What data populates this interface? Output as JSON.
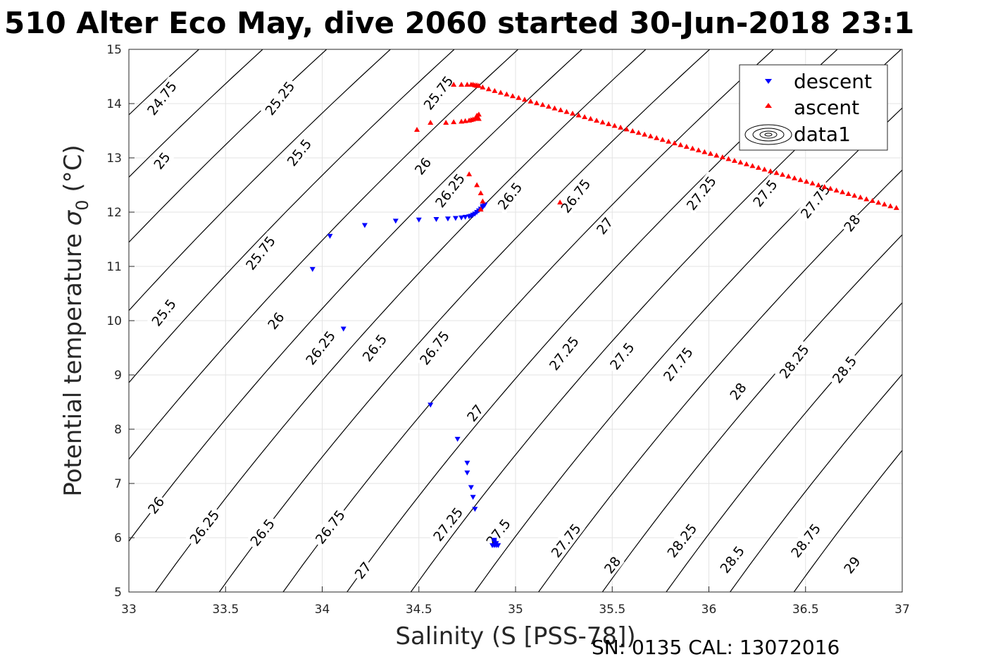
{
  "title": "510 Alter Eco May, dive 2060 started 30-Jun-2018 23:1",
  "footer": "SN: 0135  CAL: 13072016",
  "chart_data": {
    "type": "scatter",
    "xlabel": "Salinity (S [PSS-78])",
    "ylabel_main": "Potential temperature ",
    "ylabel_sigma": "σ",
    "ylabel_sub": "0",
    "ylabel_unit": " (°C)",
    "xlim": [
      33,
      37
    ],
    "ylim": [
      5,
      15
    ],
    "xticks": [
      33,
      33.5,
      34,
      34.5,
      35,
      35.5,
      36,
      36.5,
      37
    ],
    "xtick_labels": [
      "33",
      "33.5",
      "34",
      "34.5",
      "35",
      "35.5",
      "36",
      "36.5",
      "37"
    ],
    "yticks": [
      5,
      6,
      7,
      8,
      9,
      10,
      11,
      12,
      13,
      14,
      15
    ],
    "ytick_labels": [
      "5",
      "6",
      "7",
      "8",
      "9",
      "10",
      "11",
      "12",
      "13",
      "14",
      "15"
    ],
    "grid": true,
    "legend_position": "top-right",
    "contour_levels": [
      24.75,
      25,
      25.25,
      25.5,
      25.75,
      26,
      26.25,
      26.5,
      26.75,
      27,
      27.25,
      27.5,
      27.75,
      28,
      28.25,
      28.5,
      28.75,
      29
    ],
    "contour_labels": [
      {
        "text": "24.75",
        "s": 33.17,
        "t": 14.1
      },
      {
        "text": "25",
        "s": 33.17,
        "t": 12.95
      },
      {
        "text": "25.25",
        "s": 33.78,
        "t": 14.1
      },
      {
        "text": "25.5",
        "s": 33.88,
        "t": 13.1
      },
      {
        "text": "25.75",
        "s": 34.6,
        "t": 14.2
      },
      {
        "text": "26",
        "s": 34.52,
        "t": 12.85
      },
      {
        "text": "26.25",
        "s": 34.66,
        "t": 12.4
      },
      {
        "text": "26.5",
        "s": 34.97,
        "t": 12.3
      },
      {
        "text": "26.75",
        "s": 35.31,
        "t": 12.3
      },
      {
        "text": "27.25",
        "s": 35.96,
        "t": 12.35
      },
      {
        "text": "27.5",
        "s": 36.29,
        "t": 12.35
      },
      {
        "text": "27.75",
        "s": 36.55,
        "t": 12.2
      },
      {
        "text": "27",
        "s": 35.46,
        "t": 11.75
      },
      {
        "text": "28",
        "s": 36.74,
        "t": 11.8
      },
      {
        "text": "25.75",
        "s": 33.68,
        "t": 11.25
      },
      {
        "text": "25.5",
        "s": 33.18,
        "t": 10.15
      },
      {
        "text": "26",
        "s": 33.76,
        "t": 10.0
      },
      {
        "text": "26.25",
        "s": 33.99,
        "t": 9.5
      },
      {
        "text": "26.5",
        "s": 34.27,
        "t": 9.5
      },
      {
        "text": "26.75",
        "s": 34.58,
        "t": 9.5
      },
      {
        "text": "27",
        "s": 34.79,
        "t": 8.3
      },
      {
        "text": "27.25",
        "s": 35.25,
        "t": 9.4
      },
      {
        "text": "27.5",
        "s": 35.55,
        "t": 9.35
      },
      {
        "text": "27.75",
        "s": 35.84,
        "t": 9.2
      },
      {
        "text": "28",
        "s": 36.15,
        "t": 8.7
      },
      {
        "text": "28.25",
        "s": 36.44,
        "t": 9.25
      },
      {
        "text": "28.5",
        "s": 36.7,
        "t": 9.1
      },
      {
        "text": "26",
        "s": 33.14,
        "t": 6.6
      },
      {
        "text": "26.25",
        "s": 33.39,
        "t": 6.2
      },
      {
        "text": "26.5",
        "s": 33.69,
        "t": 6.1
      },
      {
        "text": "26.75",
        "s": 34.04,
        "t": 6.2
      },
      {
        "text": "27",
        "s": 34.21,
        "t": 5.4
      },
      {
        "text": "27.25",
        "s": 34.65,
        "t": 6.25
      },
      {
        "text": "27.5",
        "s": 34.91,
        "t": 6.1
      },
      {
        "text": "27.75",
        "s": 35.26,
        "t": 5.95
      },
      {
        "text": "28",
        "s": 35.5,
        "t": 5.5
      },
      {
        "text": "28.25",
        "s": 35.86,
        "t": 5.95
      },
      {
        "text": "28.5",
        "s": 36.12,
        "t": 5.6
      },
      {
        "text": "28.75",
        "s": 36.5,
        "t": 5.95
      },
      {
        "text": "29",
        "s": 36.74,
        "t": 5.5
      }
    ],
    "series": [
      {
        "name": "descent",
        "color": "#0000ff",
        "marker": "triangle-down",
        "x": [
          33.95,
          34.04,
          34.11,
          34.22,
          34.38,
          34.5,
          34.59,
          34.65,
          34.69,
          34.72,
          34.74,
          34.76,
          34.77,
          34.78,
          34.79,
          34.8,
          34.81,
          34.82,
          34.83,
          34.83,
          34.84,
          34.84,
          34.56,
          34.7,
          34.75,
          34.75,
          34.77,
          34.78,
          34.79,
          34.89,
          34.88,
          34.89,
          34.9,
          34.91,
          34.9,
          34.89
        ],
        "y": [
          10.95,
          11.56,
          9.85,
          11.76,
          11.84,
          11.86,
          11.87,
          11.88,
          11.89,
          11.9,
          11.91,
          11.92,
          11.93,
          11.95,
          11.97,
          12.0,
          12.03,
          12.06,
          12.09,
          12.11,
          12.13,
          12.14,
          8.45,
          7.82,
          7.38,
          7.2,
          6.93,
          6.75,
          6.53,
          5.96,
          5.86,
          5.86,
          5.86,
          5.86,
          5.9,
          5.93
        ]
      },
      {
        "name": "ascent",
        "color": "#ff0000",
        "marker": "triangle-up",
        "x": [
          34.49,
          34.56,
          34.64,
          34.68,
          34.72,
          34.74,
          34.76,
          34.77,
          34.78,
          34.79,
          34.8,
          34.8,
          34.8,
          34.81,
          34.81,
          34.68,
          34.72,
          34.75,
          34.77,
          34.78,
          34.79,
          34.8,
          34.8,
          34.81,
          34.76,
          34.8,
          34.82,
          34.83,
          34.82,
          35.23
        ],
        "y": [
          13.52,
          13.65,
          13.65,
          13.66,
          13.67,
          13.68,
          13.69,
          13.7,
          13.71,
          13.72,
          13.74,
          13.76,
          13.78,
          13.8,
          13.72,
          14.35,
          14.35,
          14.35,
          14.35,
          14.35,
          14.34,
          14.34,
          14.33,
          14.33,
          12.7,
          12.5,
          12.35,
          12.2,
          12.05,
          12.18
        ]
      }
    ],
    "ascent_line": {
      "s_start": 34.83,
      "t_start": 14.3,
      "s_end": 36.97,
      "t_end": 12.08,
      "count": 70
    },
    "legend_entries": [
      "descent",
      "ascent",
      "data1"
    ]
  }
}
